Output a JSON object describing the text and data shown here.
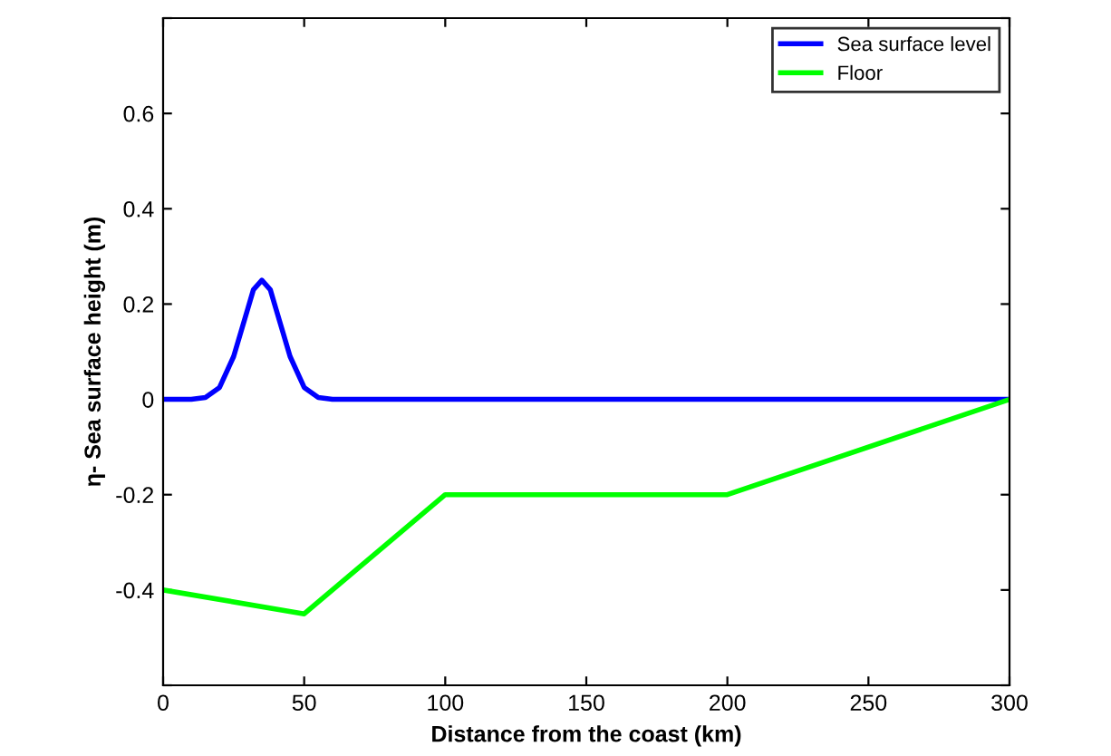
{
  "chart_data": {
    "type": "line",
    "xlabel": "Distance from the coast (km)",
    "ylabel": "η- Sea surface height (m)",
    "xlim": [
      0,
      300
    ],
    "xticks": [
      0,
      50,
      100,
      150,
      200,
      250,
      300
    ],
    "ylim": [
      -0.6,
      0.8
    ],
    "yticks": [
      {
        "value": -0.6,
        "label": null
      },
      -0.4,
      -0.2,
      0,
      0.2,
      0.4,
      0.6,
      {
        "value": 0.8,
        "label": null
      }
    ],
    "grid": false,
    "legend": "top right",
    "marker": "none",
    "line_style": "solid",
    "series": [
      {
        "name": "Sea surface level",
        "color": "#0000ff",
        "x": [
          0,
          10,
          15,
          20,
          25,
          28,
          30,
          32,
          35,
          38,
          40,
          42,
          45,
          50,
          55,
          60,
          300
        ],
        "values": [
          0,
          0,
          0.004,
          0.025,
          0.09,
          0.15,
          0.19,
          0.23,
          0.25,
          0.23,
          0.19,
          0.15,
          0.09,
          0.025,
          0.004,
          0,
          0
        ]
      },
      {
        "name": "Floor",
        "color": "#00ff00",
        "x": [
          0,
          50,
          100,
          200,
          300
        ],
        "values": [
          -0.4,
          -0.45,
          -0.2,
          -0.2,
          0
        ]
      }
    ]
  }
}
